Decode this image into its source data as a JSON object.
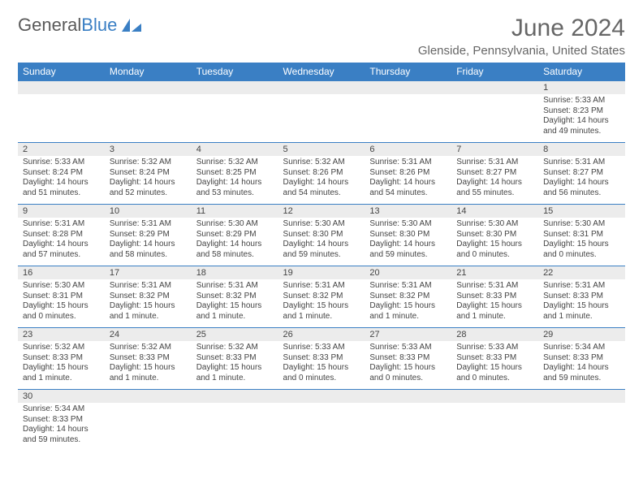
{
  "logo": {
    "word1": "General",
    "word2": "Blue"
  },
  "title": "June 2024",
  "location": "Glenside, Pennsylvania, United States",
  "colors": {
    "header_bg": "#3a7fc4",
    "header_text": "#ffffff",
    "daynum_bg": "#ececec",
    "border": "#3a7fc4",
    "text": "#444444",
    "title_text": "#666666"
  },
  "weekdays": [
    "Sunday",
    "Monday",
    "Tuesday",
    "Wednesday",
    "Thursday",
    "Friday",
    "Saturday"
  ],
  "labels": {
    "sunrise": "Sunrise:",
    "sunset": "Sunset:",
    "daylight": "Daylight:"
  },
  "weeks": [
    [
      null,
      null,
      null,
      null,
      null,
      null,
      {
        "n": "1",
        "sr": "5:33 AM",
        "ss": "8:23 PM",
        "dl": "14 hours and 49 minutes."
      }
    ],
    [
      {
        "n": "2",
        "sr": "5:33 AM",
        "ss": "8:24 PM",
        "dl": "14 hours and 51 minutes."
      },
      {
        "n": "3",
        "sr": "5:32 AM",
        "ss": "8:24 PM",
        "dl": "14 hours and 52 minutes."
      },
      {
        "n": "4",
        "sr": "5:32 AM",
        "ss": "8:25 PM",
        "dl": "14 hours and 53 minutes."
      },
      {
        "n": "5",
        "sr": "5:32 AM",
        "ss": "8:26 PM",
        "dl": "14 hours and 54 minutes."
      },
      {
        "n": "6",
        "sr": "5:31 AM",
        "ss": "8:26 PM",
        "dl": "14 hours and 54 minutes."
      },
      {
        "n": "7",
        "sr": "5:31 AM",
        "ss": "8:27 PM",
        "dl": "14 hours and 55 minutes."
      },
      {
        "n": "8",
        "sr": "5:31 AM",
        "ss": "8:27 PM",
        "dl": "14 hours and 56 minutes."
      }
    ],
    [
      {
        "n": "9",
        "sr": "5:31 AM",
        "ss": "8:28 PM",
        "dl": "14 hours and 57 minutes."
      },
      {
        "n": "10",
        "sr": "5:31 AM",
        "ss": "8:29 PM",
        "dl": "14 hours and 58 minutes."
      },
      {
        "n": "11",
        "sr": "5:30 AM",
        "ss": "8:29 PM",
        "dl": "14 hours and 58 minutes."
      },
      {
        "n": "12",
        "sr": "5:30 AM",
        "ss": "8:30 PM",
        "dl": "14 hours and 59 minutes."
      },
      {
        "n": "13",
        "sr": "5:30 AM",
        "ss": "8:30 PM",
        "dl": "14 hours and 59 minutes."
      },
      {
        "n": "14",
        "sr": "5:30 AM",
        "ss": "8:30 PM",
        "dl": "15 hours and 0 minutes."
      },
      {
        "n": "15",
        "sr": "5:30 AM",
        "ss": "8:31 PM",
        "dl": "15 hours and 0 minutes."
      }
    ],
    [
      {
        "n": "16",
        "sr": "5:30 AM",
        "ss": "8:31 PM",
        "dl": "15 hours and 0 minutes."
      },
      {
        "n": "17",
        "sr": "5:31 AM",
        "ss": "8:32 PM",
        "dl": "15 hours and 1 minute."
      },
      {
        "n": "18",
        "sr": "5:31 AM",
        "ss": "8:32 PM",
        "dl": "15 hours and 1 minute."
      },
      {
        "n": "19",
        "sr": "5:31 AM",
        "ss": "8:32 PM",
        "dl": "15 hours and 1 minute."
      },
      {
        "n": "20",
        "sr": "5:31 AM",
        "ss": "8:32 PM",
        "dl": "15 hours and 1 minute."
      },
      {
        "n": "21",
        "sr": "5:31 AM",
        "ss": "8:33 PM",
        "dl": "15 hours and 1 minute."
      },
      {
        "n": "22",
        "sr": "5:31 AM",
        "ss": "8:33 PM",
        "dl": "15 hours and 1 minute."
      }
    ],
    [
      {
        "n": "23",
        "sr": "5:32 AM",
        "ss": "8:33 PM",
        "dl": "15 hours and 1 minute."
      },
      {
        "n": "24",
        "sr": "5:32 AM",
        "ss": "8:33 PM",
        "dl": "15 hours and 1 minute."
      },
      {
        "n": "25",
        "sr": "5:32 AM",
        "ss": "8:33 PM",
        "dl": "15 hours and 1 minute."
      },
      {
        "n": "26",
        "sr": "5:33 AM",
        "ss": "8:33 PM",
        "dl": "15 hours and 0 minutes."
      },
      {
        "n": "27",
        "sr": "5:33 AM",
        "ss": "8:33 PM",
        "dl": "15 hours and 0 minutes."
      },
      {
        "n": "28",
        "sr": "5:33 AM",
        "ss": "8:33 PM",
        "dl": "15 hours and 0 minutes."
      },
      {
        "n": "29",
        "sr": "5:34 AM",
        "ss": "8:33 PM",
        "dl": "14 hours and 59 minutes."
      }
    ],
    [
      {
        "n": "30",
        "sr": "5:34 AM",
        "ss": "8:33 PM",
        "dl": "14 hours and 59 minutes."
      },
      null,
      null,
      null,
      null,
      null,
      null
    ]
  ]
}
